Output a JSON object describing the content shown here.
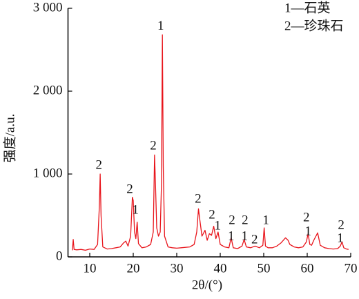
{
  "chart_data": {
    "type": "line",
    "xlabel": "2θ/(°)",
    "ylabel": "强度/a.u.",
    "legend_notes": [
      "1—石英",
      "2—珍珠石"
    ],
    "color": "#e8141b",
    "xlim": [
      5,
      70
    ],
    "xticks": [
      10,
      20,
      30,
      40,
      50,
      60,
      70
    ],
    "ylim": [
      0,
      3000
    ],
    "yticks": [
      0,
      {
        "value": 1000,
        "label": "1 000"
      },
      {
        "value": 2000,
        "label": "2 000"
      },
      {
        "value": 3000,
        "label": "3 000"
      }
    ],
    "x": [
      6,
      6.2,
      6.4,
      7,
      8,
      9,
      10,
      11,
      11.8,
      12.2,
      12.4,
      12.6,
      13,
      14,
      15,
      16,
      17,
      17.8,
      18.3,
      18.8,
      19.4,
      19.8,
      20,
      20.3,
      20.6,
      20.9,
      21.2,
      22,
      23,
      24,
      24.6,
      24.9,
      25.1,
      25.4,
      25.8,
      26.2,
      26.5,
      26.7,
      26.9,
      27.2,
      28,
      29,
      30,
      31,
      32,
      33,
      34,
      34.6,
      35,
      35.3,
      35.8,
      36.5,
      37,
      37.5,
      38,
      38.5,
      39,
      39.5,
      40,
      41,
      42,
      42.5,
      43,
      44,
      45,
      45.5,
      46,
      47,
      48,
      49,
      49.8,
      50.1,
      50.4,
      51,
      52,
      53,
      54,
      55,
      55.6,
      56,
      57,
      58,
      59,
      59.8,
      60.2,
      60.6,
      61,
      61.5,
      62,
      62.4,
      63,
      64,
      65,
      66,
      67,
      67.6,
      68,
      68.4,
      69,
      69.5
    ],
    "values": [
      80,
      210,
      90,
      85,
      90,
      80,
      95,
      90,
      150,
      600,
      1000,
      500,
      120,
      95,
      100,
      110,
      120,
      170,
      190,
      130,
      250,
      720,
      680,
      300,
      220,
      420,
      160,
      110,
      120,
      150,
      300,
      1230,
      900,
      350,
      250,
      300,
      900,
      2680,
      1100,
      250,
      120,
      110,
      105,
      110,
      115,
      120,
      150,
      300,
      580,
      450,
      250,
      320,
      200,
      280,
      260,
      370,
      220,
      300,
      150,
      120,
      110,
      230,
      110,
      100,
      130,
      210,
      120,
      110,
      130,
      110,
      140,
      350,
      130,
      110,
      110,
      130,
      170,
      230,
      200,
      150,
      120,
      110,
      120,
      180,
      280,
      150,
      140,
      200,
      250,
      290,
      140,
      110,
      100,
      95,
      100,
      130,
      180,
      110,
      95,
      90
    ],
    "annotations": [
      {
        "text": "1",
        "x": 26.3,
        "y": 2780
      },
      {
        "text": "2",
        "x": 24.6,
        "y": 1333
      },
      {
        "text": "2",
        "x": 12.1,
        "y": 1100
      },
      {
        "text": "2",
        "x": 19.2,
        "y": 808
      },
      {
        "text": "1",
        "x": 20.5,
        "y": 558
      },
      {
        "text": "2",
        "x": 34.9,
        "y": 692
      },
      {
        "text": "2",
        "x": 38.1,
        "y": 500
      },
      {
        "text": "1",
        "x": 39.4,
        "y": 367
      },
      {
        "text": "2",
        "x": 42.7,
        "y": 433
      },
      {
        "text": "1",
        "x": 42.5,
        "y": 242
      },
      {
        "text": "2",
        "x": 45.7,
        "y": 433
      },
      {
        "text": "1",
        "x": 45.6,
        "y": 242
      },
      {
        "text": "2",
        "x": 47.9,
        "y": 200
      },
      {
        "text": "1",
        "x": 50.5,
        "y": 433
      },
      {
        "text": "2",
        "x": 59.8,
        "y": 467
      },
      {
        "text": "1",
        "x": 60.2,
        "y": 300
      },
      {
        "text": "2",
        "x": 67.8,
        "y": 375
      },
      {
        "text": "1",
        "x": 67.6,
        "y": 217
      }
    ]
  }
}
